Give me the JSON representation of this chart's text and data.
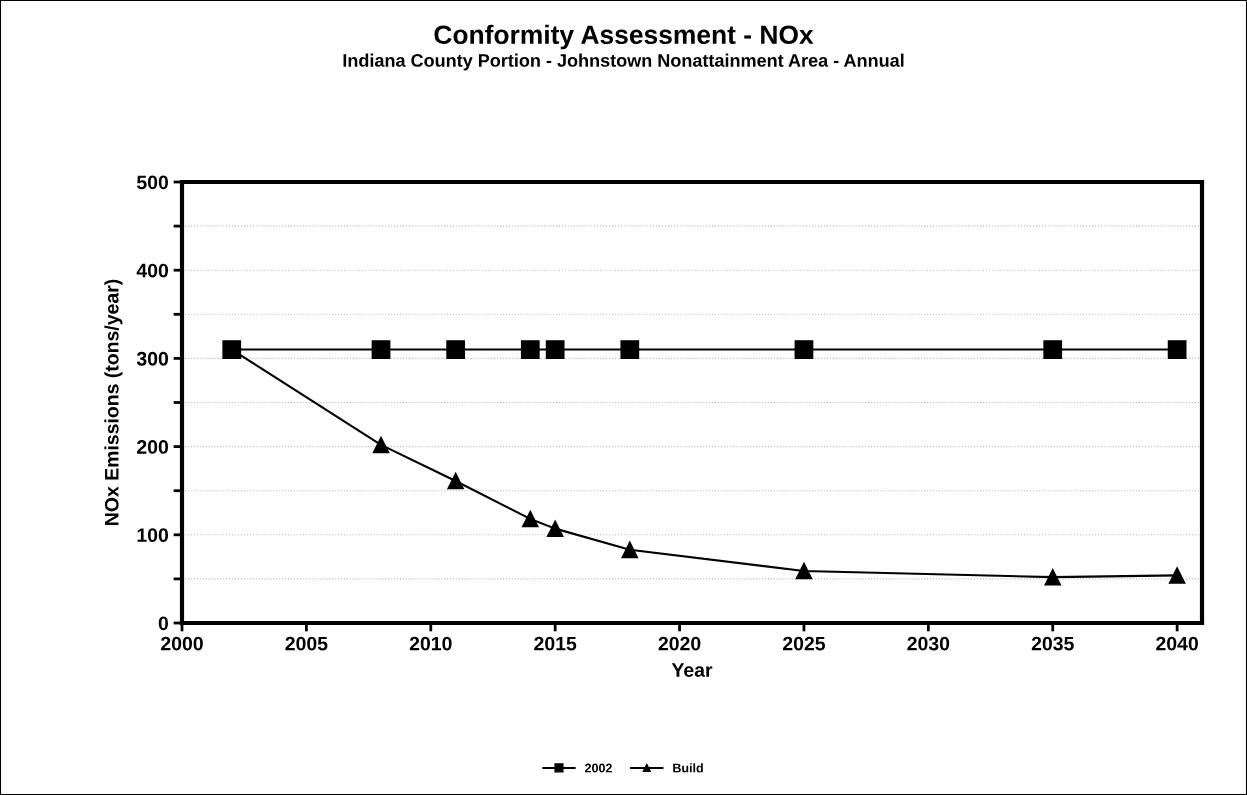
{
  "chart_data": {
    "type": "line",
    "title": "Conformity Assessment - NOx",
    "subtitle": "Indiana County Portion - Johnstown Nonattainment Area - Annual",
    "xlabel": "Year",
    "ylabel": "NOx Emissions (tons/year)",
    "x": [
      2002,
      2008,
      2011,
      2014,
      2015,
      2018,
      2025,
      2035,
      2040
    ],
    "series": [
      {
        "name": "2002",
        "color": "#000000",
        "marker": "square",
        "values": [
          310,
          310,
          310,
          310,
          310,
          310,
          310,
          310,
          310
        ]
      },
      {
        "name": "Build",
        "color": "#000000",
        "marker": "triangle",
        "values": [
          310,
          202,
          161,
          118,
          107,
          83,
          59,
          52,
          54
        ]
      }
    ],
    "xlim": [
      2000,
      2041
    ],
    "xticks": [
      2000,
      2005,
      2010,
      2015,
      2020,
      2025,
      2030,
      2035,
      2040
    ],
    "ylim": [
      0,
      500
    ],
    "yticks": [
      0,
      {
        "value": 50,
        "label": null
      },
      100,
      {
        "value": 150,
        "label": null
      },
      200,
      {
        "value": 250,
        "label": null
      },
      300,
      {
        "value": 350,
        "label": null
      },
      400,
      {
        "value": 450,
        "label": null
      },
      500
    ],
    "grid": "y",
    "legend": "bottom",
    "line_style": "solid"
  }
}
